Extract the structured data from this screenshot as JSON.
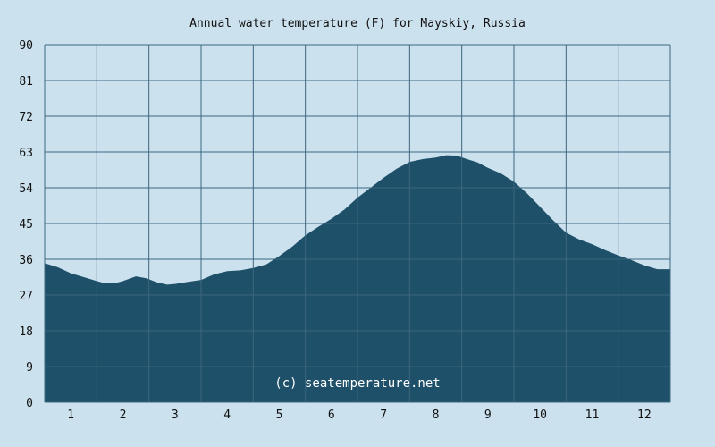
{
  "chart_data": {
    "type": "area",
    "title": "Annual water temperature (F) for Mayskiy, Russia",
    "xlabel": "",
    "ylabel": "",
    "ylim": [
      0,
      90
    ],
    "y_ticks": [
      "0",
      "9",
      "18",
      "27",
      "36",
      "45",
      "54",
      "63",
      "72",
      "81",
      "90"
    ],
    "x_tick_labels": [
      "1",
      "2",
      "3",
      "4",
      "5",
      "6",
      "7",
      "8",
      "9",
      "10",
      "11",
      "12"
    ],
    "x_range_months": [
      0.5,
      12.5
    ],
    "grid": true,
    "colors": {
      "fill": "#1e5069",
      "grid": "#3d6680",
      "background": "#cce1ee",
      "plot_background": "#cce1ee"
    },
    "watermark": "(c) seatemperature.net",
    "series": [
      {
        "x": [
          0.5,
          0.75,
          1.0,
          1.25,
          1.5,
          1.65,
          1.85,
          2.0,
          2.25,
          2.45,
          2.65,
          2.85,
          3.0,
          3.25,
          3.5,
          3.75,
          4.0,
          4.25,
          4.5,
          4.75,
          5.0,
          5.25,
          5.5,
          5.75,
          6.0,
          6.25,
          6.5,
          6.75,
          7.0,
          7.25,
          7.5,
          7.75,
          8.0,
          8.2,
          8.4,
          8.6,
          8.8,
          9.0,
          9.25,
          9.5,
          9.75,
          10.0,
          10.25,
          10.5,
          10.75,
          11.0,
          11.25,
          11.5,
          11.75,
          12.0,
          12.25,
          12.5
        ],
        "values": [
          35.0,
          34.0,
          32.5,
          31.5,
          30.5,
          30.0,
          30.0,
          30.5,
          31.7,
          31.2,
          30.2,
          29.6,
          29.8,
          30.3,
          30.8,
          32.2,
          33.0,
          33.2,
          33.8,
          34.7,
          36.8,
          39.2,
          42.0,
          44.2,
          46.2,
          48.5,
          51.5,
          54.0,
          56.5,
          58.8,
          60.5,
          61.2,
          61.6,
          62.2,
          62.1,
          61.2,
          60.4,
          59.0,
          57.6,
          55.5,
          52.6,
          49.2,
          45.8,
          42.7,
          41.0,
          39.8,
          38.3,
          37.0,
          35.8,
          34.5,
          33.5,
          33.5
        ]
      }
    ]
  }
}
